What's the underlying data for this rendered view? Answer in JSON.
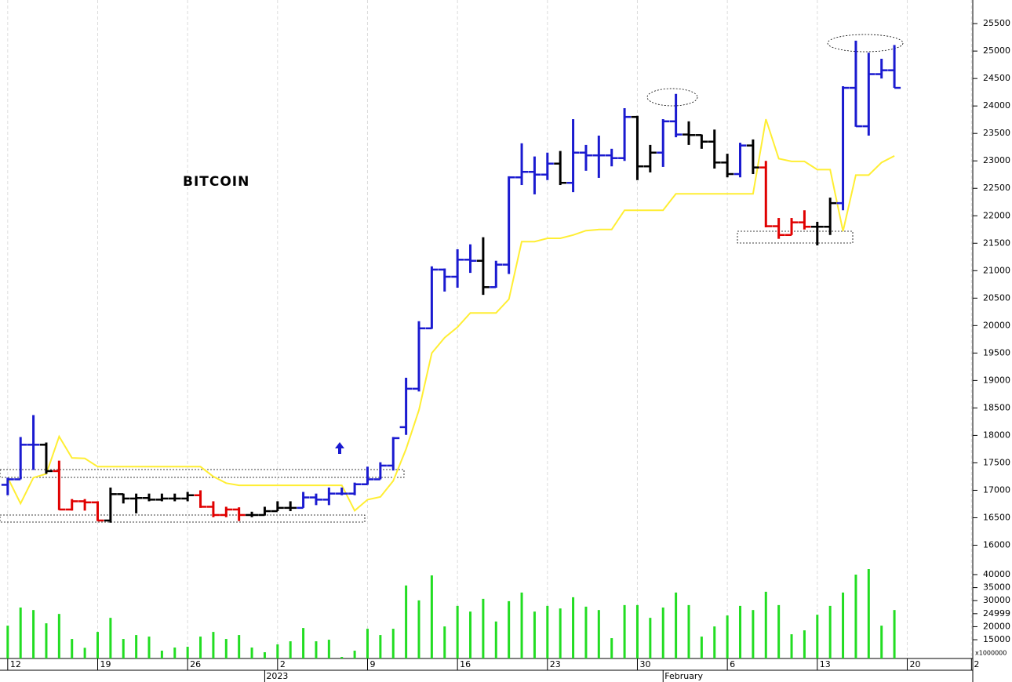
{
  "chart_data": {
    "type": "ohlc",
    "title": "BITCOIN",
    "x": [
      0,
      1,
      2,
      3,
      4,
      5,
      6,
      7,
      8,
      9,
      10,
      11,
      12,
      13,
      14,
      15,
      16,
      17,
      18,
      19,
      20,
      21,
      22,
      23,
      24,
      25,
      26,
      27,
      28,
      29,
      30,
      31,
      32,
      33,
      34,
      35,
      36,
      37,
      38,
      39,
      40,
      41,
      42,
      43,
      44,
      45,
      46,
      47,
      48,
      49,
      50,
      51,
      52,
      53,
      54,
      55,
      56,
      57,
      58,
      59,
      60,
      61,
      62,
      63,
      64,
      65,
      66,
      67,
      68,
      69
    ],
    "xlim": [
      -0.6,
      75.1
    ],
    "xticks": [
      {
        "value": 0,
        "label": "12"
      },
      {
        "value": 7,
        "label": "19"
      },
      {
        "value": 14,
        "label": "26"
      },
      {
        "value": 21,
        "label": "2"
      },
      {
        "value": 28,
        "label": "9"
      },
      {
        "value": 35,
        "label": "16"
      },
      {
        "value": 42,
        "label": "23"
      },
      {
        "value": 49,
        "label": "30"
      },
      {
        "value": 56,
        "label": "6"
      },
      {
        "value": 63,
        "label": "13"
      },
      {
        "value": 70,
        "label": "20"
      },
      {
        "value": 75,
        "label": "2"
      }
    ],
    "period_labels": [
      {
        "value": 20,
        "label": "2023"
      },
      {
        "value": 51,
        "label": "February"
      }
    ],
    "ylim": [
      15650,
      25930
    ],
    "yticks": [
      16000,
      16500,
      17000,
      17500,
      18000,
      18500,
      19000,
      19500,
      20000,
      20500,
      21000,
      21500,
      22000,
      22500,
      23000,
      23500,
      24000,
      24500,
      25000,
      25500
    ],
    "grid": true,
    "open": [
      17100,
      17200,
      17830,
      17830,
      17350,
      16650,
      16800,
      16780,
      16450,
      16930,
      16850,
      16860,
      16830,
      16850,
      16850,
      16910,
      16700,
      16550,
      16650,
      16550,
      16550,
      16620,
      16680,
      16680,
      16870,
      16830,
      16940,
      16940,
      17110,
      17200,
      17450,
      18150,
      18850,
      19950,
      21020,
      20890,
      21200,
      21180,
      20700,
      21110,
      22700,
      22800,
      22750,
      22950,
      22600,
      23150,
      23100,
      23100,
      23050,
      23800,
      22900,
      23150,
      23720,
      23480,
      23470,
      23350,
      22970,
      22760,
      23280,
      22880,
      21810,
      21650,
      21880,
      21800,
      21800,
      22230,
      24330,
      23630,
      24580,
      24650
    ],
    "high": [
      17230,
      17970,
      18370,
      17870,
      17540,
      16840,
      16840,
      16800,
      17050,
      16940,
      16940,
      16940,
      16940,
      16940,
      16970,
      17000,
      16800,
      16700,
      16690,
      16610,
      16700,
      16800,
      16800,
      16970,
      16940,
      17050,
      17050,
      17140,
      17430,
      17510,
      17970,
      19050,
      20080,
      21080,
      21040,
      21390,
      21480,
      21610,
      21180,
      22720,
      23320,
      23080,
      23150,
      23180,
      23760,
      23290,
      23460,
      23220,
      23960,
      23820,
      23290,
      23760,
      24220,
      23720,
      23480,
      23570,
      23130,
      23330,
      23390,
      23000,
      21960,
      21960,
      22100,
      21890,
      22330,
      24360,
      25190,
      24970,
      24860,
      25110
    ],
    "low": [
      16910,
      17200,
      17370,
      17300,
      16640,
      16630,
      16630,
      16440,
      16410,
      16760,
      16580,
      16800,
      16800,
      16800,
      16800,
      16680,
      16510,
      16510,
      16440,
      16510,
      16540,
      16620,
      16620,
      16680,
      16730,
      16730,
      16910,
      16910,
      17100,
      17200,
      17360,
      18010,
      18800,
      19940,
      20620,
      20690,
      20960,
      20560,
      20690,
      20940,
      22560,
      22390,
      22650,
      22560,
      22430,
      22820,
      22690,
      22900,
      23000,
      22650,
      22790,
      22890,
      23430,
      23290,
      23220,
      22860,
      22700,
      22700,
      22760,
      21790,
      21580,
      21650,
      21750,
      21460,
      21650,
      22100,
      23620,
      23460,
      24500,
      24330
    ],
    "close": [
      17200,
      17830,
      17830,
      17350,
      16650,
      16800,
      16780,
      16450,
      16930,
      16850,
      16860,
      16830,
      16850,
      16850,
      16910,
      16700,
      16550,
      16650,
      16550,
      16550,
      16620,
      16680,
      16680,
      16870,
      16830,
      16940,
      16940,
      17110,
      17200,
      17450,
      17950,
      18850,
      19950,
      21020,
      20890,
      21200,
      21180,
      20700,
      21110,
      22700,
      22800,
      22750,
      22950,
      22600,
      23150,
      23100,
      23100,
      23050,
      23800,
      22900,
      23150,
      23720,
      23480,
      23470,
      23350,
      22970,
      22760,
      23280,
      22880,
      21810,
      21650,
      21880,
      21800,
      21800,
      22230,
      24330,
      23630,
      24580,
      24650,
      24330
    ],
    "bar_colors": [
      "#1a1ad0",
      "#1a1ad0",
      "#1a1ad0",
      "#000000",
      "#e00000",
      "#e00000",
      "#e00000",
      "#e00000",
      "#000000",
      "#000000",
      "#000000",
      "#000000",
      "#000000",
      "#000000",
      "#000000",
      "#e00000",
      "#e00000",
      "#e00000",
      "#e00000",
      "#000000",
      "#000000",
      "#000000",
      "#000000",
      "#1a1ad0",
      "#1a1ad0",
      "#1a1ad0",
      "#1a1ad0",
      "#1a1ad0",
      "#1a1ad0",
      "#1a1ad0",
      "#1a1ad0",
      "#1a1ad0",
      "#1a1ad0",
      "#1a1ad0",
      "#1a1ad0",
      "#1a1ad0",
      "#1a1ad0",
      "#000000",
      "#1a1ad0",
      "#1a1ad0",
      "#1a1ad0",
      "#1a1ad0",
      "#1a1ad0",
      "#000000",
      "#1a1ad0",
      "#1a1ad0",
      "#1a1ad0",
      "#1a1ad0",
      "#1a1ad0",
      "#000000",
      "#000000",
      "#1a1ad0",
      "#1a1ad0",
      "#000000",
      "#000000",
      "#000000",
      "#000000",
      "#1a1ad0",
      "#000000",
      "#e00000",
      "#e00000",
      "#e00000",
      "#e00000",
      "#000000",
      "#000000",
      "#1a1ad0",
      "#1a1ad0",
      "#1a1ad0",
      "#1a1ad0",
      "#1a1ad0"
    ],
    "line": {
      "color": "#ffee33",
      "values": [
        17230,
        16760,
        17230,
        17300,
        17980,
        17590,
        17580,
        17430,
        17430,
        17430,
        17430,
        17430,
        17430,
        17430,
        17430,
        17430,
        17250,
        17130,
        17090,
        17090,
        17090,
        17090,
        17090,
        17090,
        17090,
        17090,
        17090,
        16630,
        16830,
        16880,
        17170,
        17750,
        18460,
        19500,
        19780,
        19970,
        20230,
        20230,
        20230,
        20480,
        21530,
        21530,
        21590,
        21590,
        21650,
        21730,
        21750,
        21750,
        22100,
        22100,
        22100,
        22100,
        22400,
        22400,
        22400,
        22400,
        22400,
        22400,
        22400,
        23760,
        23040,
        22990,
        22990,
        22840,
        22840,
        21720,
        22740,
        22740,
        22970,
        23090
      ]
    },
    "volume": {
      "color": "#22dd22",
      "unit": "x1000000",
      "ylim": [
        7800,
        43000
      ],
      "yticks": [
        15000,
        20000,
        24999,
        30000,
        35000,
        40000
      ],
      "values": [
        20400,
        27350,
        26400,
        21300,
        24900,
        15300,
        11900,
        18000,
        23400,
        15300,
        16800,
        16200,
        10800,
        12000,
        12300,
        16200,
        18000,
        15300,
        16800,
        12000,
        10200,
        13200,
        14400,
        19500,
        14400,
        15000,
        8400,
        10800,
        19200,
        16800,
        19200,
        35800,
        30100,
        39700,
        20100,
        28000,
        25800,
        30700,
        22000,
        29800,
        33100,
        25800,
        28000,
        27000,
        31300,
        27700,
        26400,
        15600,
        28300,
        28300,
        23400,
        27350,
        33100,
        28300,
        16200,
        20100,
        24300,
        28000,
        26400,
        33400,
        28300,
        17100,
        18600,
        24600,
        28000,
        33100,
        40000,
        42100,
        20400,
        26400
      ]
    }
  }
}
